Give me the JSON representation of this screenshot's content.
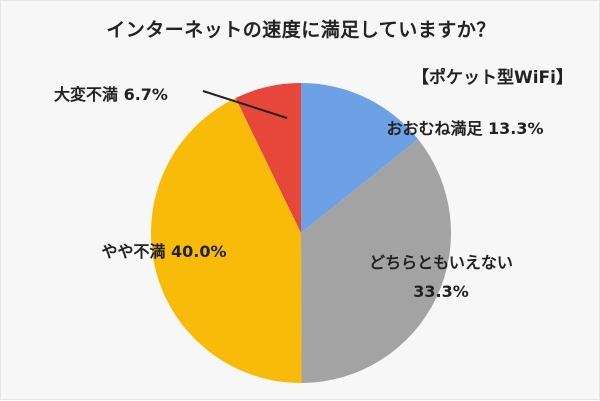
{
  "header": {
    "title": "インターネットの速度に満足していますか？",
    "subtitle": "【ポケット型WiFi】"
  },
  "colors": {
    "slice_1": "#6ea0e6",
    "slice_2": "#a3a3a3",
    "slice_3": "#f9bb0a",
    "slice_4": "#e7463a",
    "background": "#f7f7f7"
  },
  "chart_data": {
    "type": "pie",
    "title": "インターネットの速度に満足していますか？",
    "subtitle": "【ポケット型WiFi】",
    "start_angle": "12 o'clock",
    "direction": "clockwise",
    "slices": [
      {
        "label": "おおむね満足",
        "value": 13.3,
        "value_label": "13.3%",
        "color": "#6ea0e6"
      },
      {
        "label": "どちらともいえない",
        "value": 33.3,
        "value_label": "33.3%",
        "color": "#a3a3a3"
      },
      {
        "label": "やや不満",
        "value": 40.0,
        "value_label": "40.0%",
        "color": "#f9bb0a"
      },
      {
        "label": "大変不満",
        "value": 6.7,
        "value_label": "6.7%",
        "color": "#e7463a"
      }
    ]
  }
}
